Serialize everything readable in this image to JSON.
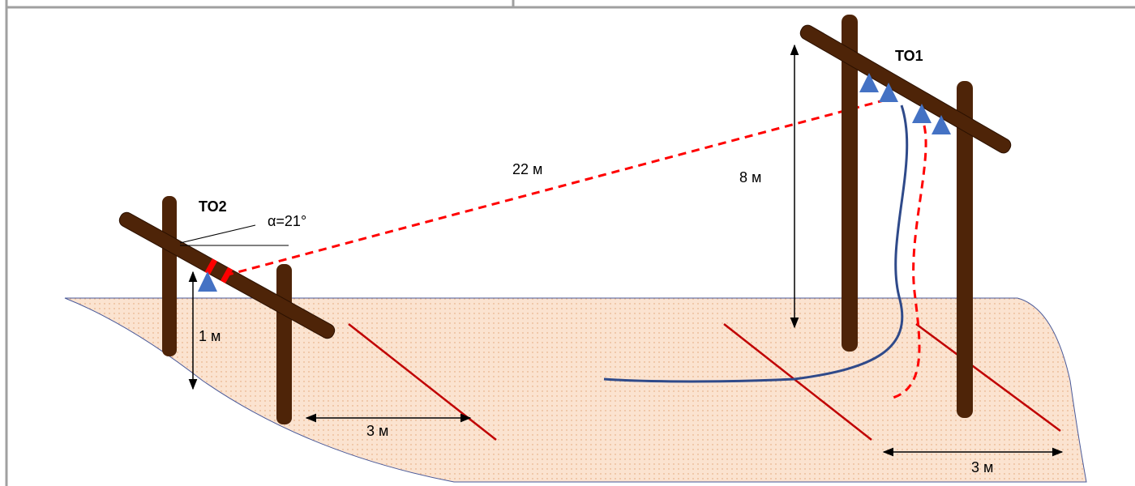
{
  "diagram": {
    "support_1": "TO1",
    "support_2": "TO2",
    "angle": "α=21°",
    "span_length": "22 м",
    "height_1": "8 м",
    "height_2": "1 м",
    "distance_1": "3 м",
    "distance_2": "3 м"
  }
}
